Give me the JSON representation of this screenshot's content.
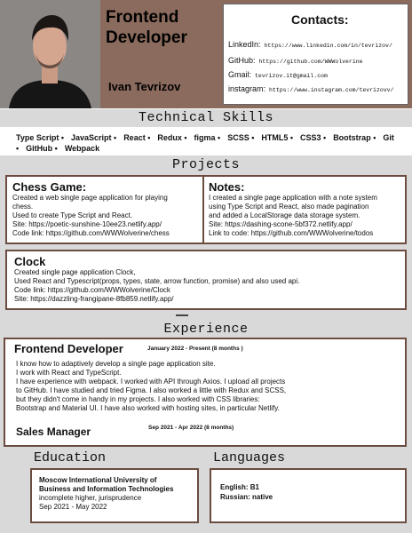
{
  "header": {
    "title_line1": "Frontend",
    "title_line2": "Developer",
    "name": "Ivan Tevrizov"
  },
  "contacts": {
    "title": "Contacts:",
    "items": [
      {
        "label": "LinkedIn:",
        "value": "https://www.linkedin.com/in/tevrizov/"
      },
      {
        "label": "GitHub:",
        "value": "https://github.com/WWWolverine"
      },
      {
        "label": "Gmail:",
        "value": "tevrizov.it@gmail.com"
      },
      {
        "label": "instagram:",
        "value": "https://www.instagram.com/tevrizovv/"
      }
    ]
  },
  "skills": {
    "title": "Technical Skills",
    "items": [
      "Type Script •",
      "JavaScript •",
      "React •",
      "Redux •",
      "figma •",
      "SCSS •",
      "HTML5 •",
      "CSS3 •",
      "Bootstrap •",
      "Git •",
      "GitHub •",
      "Webpack"
    ]
  },
  "projects": {
    "title": "Projects",
    "chess": {
      "title": "Chess Game:",
      "lines": [
        "Created a web single page application for playing",
        "chess.",
        "Used to create Type Script and React.",
        "Site: https://poetic-sunshine-10ee23.netlify.app/",
        "Code link: https://github.com/WWWolverine/chess"
      ]
    },
    "notes": {
      "title": "Notes:",
      "lines": [
        "I created a single page application with a note system",
        "using Type Script and React, also made pagination",
        "and added a LocalStorage data storage system.",
        "Site: https://dashing-scone-5bf372.netlify.app/",
        "Link to code: https://github.com/WWWolverine/todos"
      ]
    },
    "clock": {
      "title": "Clock",
      "lines": [
        "Created single page application Clock,",
        "Used React and Typescript(props, types, state, arrow function, promise) and also used api.",
        "Code link: https://github.com/WWWolverine/Clock",
        "Site: https://dazzling-frangipane-8fb859.netlify.app/"
      ]
    }
  },
  "experience": {
    "title": "Experience",
    "job1": {
      "title": "Frontend Developer",
      "dates": "January 2022 - Present (8 months )",
      "lines": [
        "I know how to adaptively develop a single page application site.",
        "I work with React and TypeScript.",
        "I have experience with webpack. I worked with API through Axios. I upload all projects",
        "to GitHub. I have studied and tried Figma. I also worked a little with Redux and SCSS,",
        "but they didn't come in handy in my projects. I also worked with CSS libraries:",
        "Bootstrap and Material UI. I have also worked with hosting sites, in particular Netlify."
      ]
    },
    "job2": {
      "title": "Sales Manager",
      "dates": "Sep 2021 - Apr 2022 (8 months)"
    }
  },
  "education": {
    "title": "Education",
    "school_line1": "Moscow International University of",
    "school_line2": "Business and Information Technologies",
    "degree": "incomplete higher, jurisprudence",
    "dates": "Sep 2021 - May 2022"
  },
  "languages": {
    "title": "Languages",
    "items": [
      "English: B1",
      "Russian: native"
    ]
  }
}
